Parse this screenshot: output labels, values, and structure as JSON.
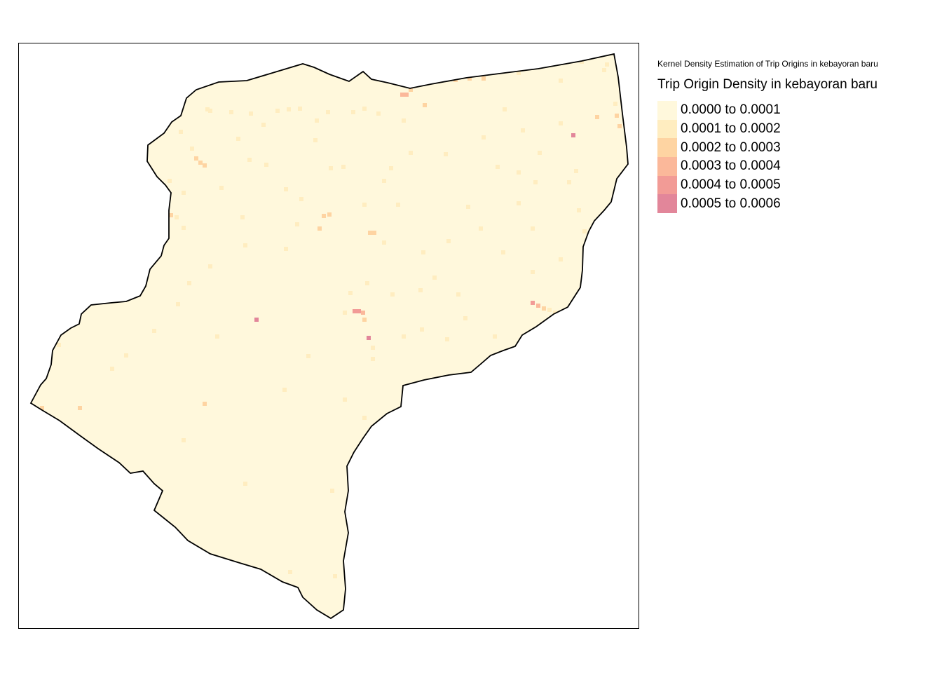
{
  "map": {
    "caption": "Kernel Density Estimation of Trip Origins in kebayoran baru",
    "legend_title": "Trip Origin Density in kebayoran baru",
    "legend": [
      {
        "label": "0.0000 to 0.0001",
        "color": "#fff8dc"
      },
      {
        "label": "0.0001 to 0.0002",
        "color": "#ffedc0"
      },
      {
        "label": "0.0002 to 0.0003",
        "color": "#fed4a2"
      },
      {
        "label": "0.0003 to 0.0004",
        "color": "#fbb89a"
      },
      {
        "label": "0.0004 to 0.0005",
        "color": "#f29b96"
      },
      {
        "label": "0.0005 to 0.0006",
        "color": "#e2869a"
      }
    ],
    "boundary_color": "#000000"
  }
}
